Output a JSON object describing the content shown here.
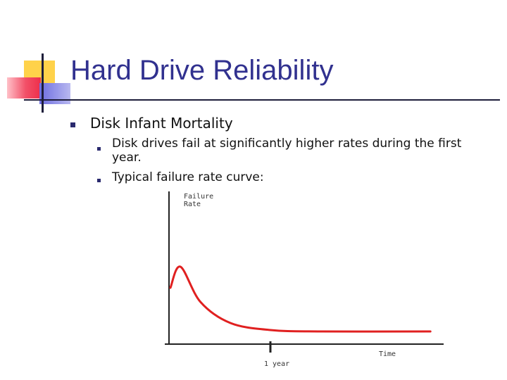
{
  "slide": {
    "title": "Hard Drive Reliability",
    "bullet_1": "Disk Infant Mortality",
    "sub_bullets": [
      "Disk drives fail at significantly higher rates during the first year.",
      "Typical failure rate curve:"
    ]
  },
  "chart_data": {
    "type": "line",
    "ylabel_line1": "Failure",
    "ylabel_line2": "Rate",
    "xlabel": "Time",
    "x_tick_label": "1 year",
    "series": [
      {
        "values": [
          [
            0.0,
            0.4
          ],
          [
            0.1,
            0.55
          ],
          [
            0.3,
            0.3
          ],
          [
            0.6,
            0.15
          ],
          [
            1.0,
            0.1
          ],
          [
            1.5,
            0.09
          ],
          [
            2.6,
            0.09
          ]
        ]
      }
    ],
    "line_color": "#e02020",
    "axis_color": "#222222"
  },
  "colors": {
    "title": "#31318f",
    "bullet": "#2a2a6e",
    "logo_yellow": "#ffd24a",
    "logo_red": "#ee2e4a",
    "logo_blue": "#6d6de0"
  }
}
